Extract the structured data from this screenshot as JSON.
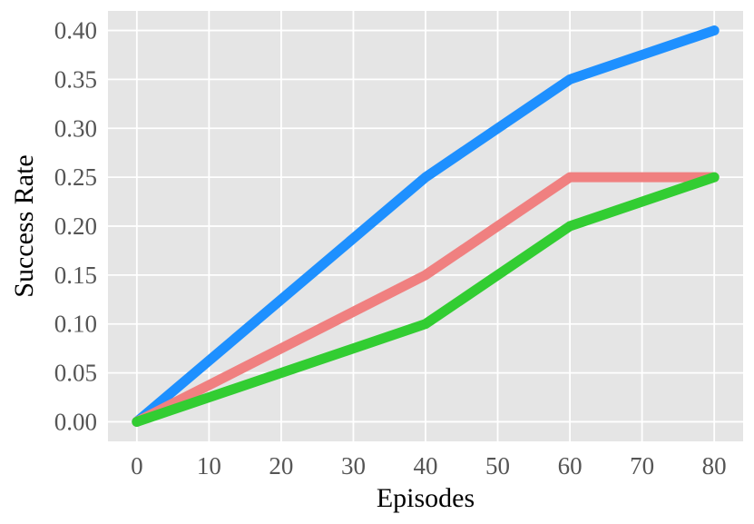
{
  "chart_data": {
    "type": "line",
    "title": "",
    "xlabel": "Episodes",
    "ylabel": "Success Rate",
    "x": [
      0,
      40,
      60,
      80
    ],
    "xlim": [
      -4,
      84
    ],
    "ylim": [
      -0.02,
      0.42
    ],
    "xticks": [
      0,
      10,
      20,
      30,
      40,
      50,
      60,
      70,
      80
    ],
    "yticks": [
      0.0,
      0.05,
      0.1,
      0.15,
      0.2,
      0.25,
      0.3,
      0.35,
      0.4
    ],
    "xtick_labels": [
      "0",
      "10",
      "20",
      "30",
      "40",
      "50",
      "60",
      "70",
      "80"
    ],
    "ytick_labels": [
      "0.00",
      "0.05",
      "0.10",
      "0.15",
      "0.20",
      "0.25",
      "0.30",
      "0.35",
      "0.40"
    ],
    "grid": true,
    "legend": "none",
    "background": "#e5e5e5",
    "grid_color": "#ffffff",
    "series": [
      {
        "color": "#1e90ff",
        "values": [
          0.0,
          0.25,
          0.35,
          0.4
        ]
      },
      {
        "color": "#f08080",
        "values": [
          0.0,
          0.15,
          0.25,
          0.25
        ]
      },
      {
        "color": "#32cd32",
        "values": [
          0.0,
          0.1,
          0.2,
          0.25
        ]
      }
    ]
  }
}
